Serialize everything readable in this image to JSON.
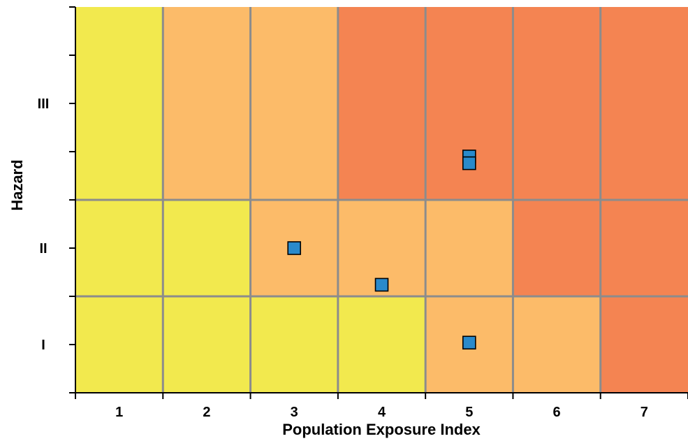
{
  "chart_data": {
    "type": "heatmap",
    "title": "",
    "xlabel": "Population Exposure Index",
    "ylabel": "Hazard",
    "x_categories": [
      "1",
      "2",
      "3",
      "4",
      "5",
      "6",
      "7"
    ],
    "y_categories": [
      "I",
      "II",
      "III"
    ],
    "xlim": [
      0.5,
      7.5
    ],
    "ylim": [
      0,
      4
    ],
    "grid": true,
    "legend": "none",
    "cell_levels": [
      [
        "low",
        "low",
        "low",
        "low",
        "medium",
        "medium",
        "high"
      ],
      [
        "low",
        "low",
        "medium",
        "medium",
        "medium",
        "high",
        "high"
      ],
      [
        "low",
        "medium",
        "medium",
        "high",
        "high",
        "high",
        "high"
      ]
    ],
    "level_colors": {
      "low": "#f2e94e",
      "medium": "#fcbb69",
      "high": "#f48452"
    },
    "points": [
      {
        "x": 3.0,
        "y": 1.5
      },
      {
        "x": 4.0,
        "y": 1.12
      },
      {
        "x": 5.0,
        "y": 0.52
      },
      {
        "x": 5.0,
        "y": 2.45
      },
      {
        "x": 5.0,
        "y": 2.38
      }
    ],
    "marker_color": "#2a8acb",
    "cell_line_color": "#8c8c8c"
  }
}
